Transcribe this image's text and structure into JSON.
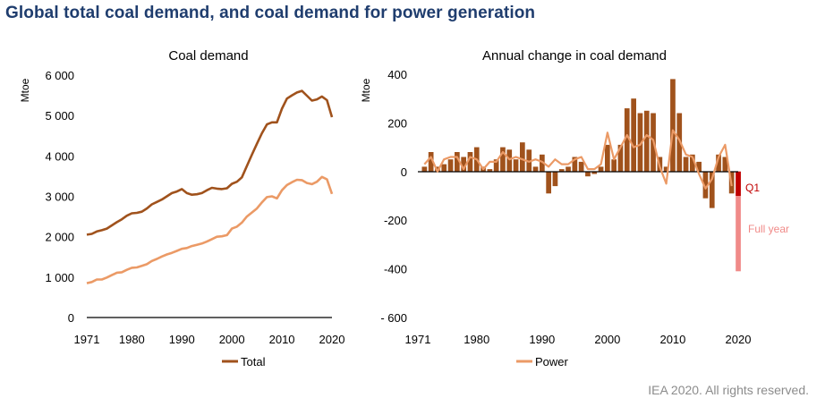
{
  "title": "Global total coal demand, and coal demand for power generation",
  "footer": "IEA 2020. All rights reserved.",
  "colors": {
    "total": "#a0521c",
    "power": "#eb9a66",
    "q1": "#c00000",
    "full_year": "#f08a88",
    "title": "#1f3d6e"
  },
  "chart_data": [
    {
      "type": "line",
      "title": "Coal demand",
      "ylabel": "Mtoe",
      "ylim": [
        0,
        6000
      ],
      "yticks": [
        0,
        1000,
        2000,
        3000,
        4000,
        5000,
        6000
      ],
      "ytick_labels": [
        "0",
        "1 000",
        "2 000",
        "3 000",
        "4 000",
        "5 000",
        "6 000"
      ],
      "xlim": [
        1971,
        2020
      ],
      "xticks": [
        1971,
        1980,
        1990,
        2000,
        2010,
        2020
      ],
      "xtick_labels": [
        "1971",
        "1980",
        "1990",
        "2000",
        "2010",
        "2020"
      ],
      "x": [
        1971,
        1972,
        1973,
        1974,
        1975,
        1976,
        1977,
        1978,
        1979,
        1980,
        1981,
        1982,
        1983,
        1984,
        1985,
        1986,
        1987,
        1988,
        1989,
        1990,
        1991,
        1992,
        1993,
        1994,
        1995,
        1996,
        1997,
        1998,
        1999,
        2000,
        2001,
        2002,
        2003,
        2004,
        2005,
        2006,
        2007,
        2008,
        2009,
        2010,
        2011,
        2012,
        2013,
        2014,
        2015,
        2016,
        2017,
        2018,
        2019,
        2020
      ],
      "legend": [
        "Total"
      ],
      "series": [
        {
          "name": "Total",
          "color_key": "total",
          "values": [
            2050,
            2070,
            2130,
            2160,
            2200,
            2280,
            2360,
            2430,
            2520,
            2580,
            2590,
            2620,
            2700,
            2800,
            2860,
            2920,
            3000,
            3080,
            3120,
            3180,
            3080,
            3040,
            3050,
            3080,
            3150,
            3210,
            3190,
            3180,
            3200,
            3310,
            3360,
            3470,
            3750,
            4030,
            4300,
            4560,
            4780,
            4830,
            4830,
            5170,
            5420,
            5500,
            5570,
            5610,
            5490,
            5370,
            5400,
            5470,
            5380,
            4960
          ]
        },
        {
          "values": [
            850,
            880,
            940,
            940,
            990,
            1050,
            1110,
            1120,
            1180,
            1230,
            1240,
            1280,
            1320,
            1400,
            1450,
            1510,
            1560,
            1600,
            1650,
            1700,
            1720,
            1770,
            1800,
            1830,
            1880,
            1940,
            2000,
            2010,
            2040,
            2200,
            2250,
            2350,
            2500,
            2600,
            2700,
            2850,
            2980,
            3000,
            2950,
            3150,
            3280,
            3350,
            3410,
            3400,
            3330,
            3300,
            3360,
            3480,
            3420,
            3060
          ]
        }
      ]
    },
    {
      "type": "bar",
      "title": "Annual change in coal demand",
      "ylabel": "Mtoe",
      "ylim": [
        -600,
        400
      ],
      "yticks": [
        -600,
        -400,
        -200,
        0,
        200,
        400
      ],
      "ytick_labels": [
        "- 600",
        "-400",
        "-200",
        "0",
        "200",
        "400"
      ],
      "xlim": [
        1971,
        2020
      ],
      "xticks": [
        1971,
        1980,
        1990,
        2000,
        2010,
        2020
      ],
      "xtick_labels": [
        "1971",
        "1980",
        "1990",
        "2000",
        "2010",
        "2020"
      ],
      "x": [
        1972,
        1973,
        1974,
        1975,
        1976,
        1977,
        1978,
        1979,
        1980,
        1981,
        1982,
        1983,
        1984,
        1985,
        1986,
        1987,
        1988,
        1989,
        1990,
        1991,
        1992,
        1993,
        1994,
        1995,
        1996,
        1997,
        1998,
        1999,
        2000,
        2001,
        2002,
        2003,
        2004,
        2005,
        2006,
        2007,
        2008,
        2009,
        2010,
        2011,
        2012,
        2013,
        2014,
        2015,
        2016,
        2017,
        2018,
        2019
      ],
      "legend": [
        "Power"
      ],
      "series": [
        {
          "color_key": "total",
          "values": [
            20,
            80,
            20,
            30,
            50,
            80,
            60,
            80,
            100,
            20,
            10,
            50,
            100,
            90,
            50,
            120,
            90,
            20,
            70,
            -90,
            -60,
            10,
            20,
            60,
            40,
            -20,
            -10,
            20,
            110,
            50,
            110,
            260,
            300,
            240,
            250,
            240,
            60,
            20,
            380,
            240,
            60,
            70,
            40,
            -110,
            -150,
            70,
            60,
            -90
          ]
        },
        {
          "name": "Power",
          "color_key": "power",
          "values": [
            30,
            60,
            0,
            50,
            60,
            60,
            10,
            60,
            50,
            10,
            40,
            40,
            80,
            50,
            60,
            50,
            40,
            50,
            40,
            20,
            50,
            30,
            30,
            50,
            60,
            10,
            10,
            30,
            160,
            50,
            100,
            150,
            100,
            110,
            150,
            130,
            20,
            -50,
            170,
            130,
            70,
            60,
            -10,
            -70,
            -30,
            60,
            110,
            -60
          ]
        },
        {
          "name": "Q1",
          "color_key": "q1",
          "x": 2020,
          "value": -100
        },
        {
          "name": "Full year",
          "color_key": "full_year",
          "x": 2020,
          "value": -410
        }
      ],
      "annotations": [
        "Q1",
        "Full year"
      ]
    }
  ]
}
